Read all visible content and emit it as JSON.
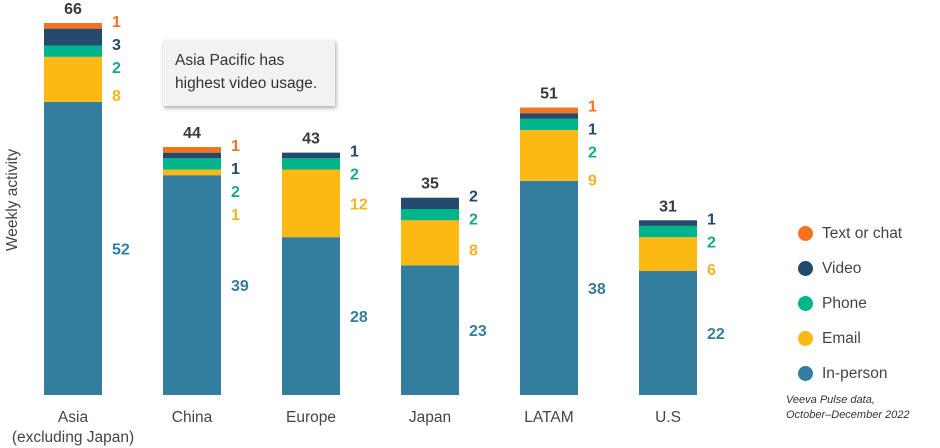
{
  "chart_data": {
    "type": "bar",
    "stacked": true,
    "title": "",
    "xlabel": "",
    "ylabel": "Weekly activity",
    "ylim": [
      0,
      66
    ],
    "grid": false,
    "categories": [
      "Asia\n(excluding Japan)",
      "China",
      "Europe",
      "Japan",
      "LATAM",
      "U.S"
    ],
    "category_lines": [
      [
        "Asia",
        "(excluding Japan)"
      ],
      [
        "China"
      ],
      [
        "Europe"
      ],
      [
        "Japan"
      ],
      [
        "LATAM"
      ],
      [
        "U.S"
      ]
    ],
    "totals": [
      66,
      44,
      43,
      35,
      51,
      31
    ],
    "series": [
      {
        "name": "In-person",
        "color": "#337e9e",
        "label_color": "#337e9e",
        "values": [
          52,
          39,
          28,
          23,
          38,
          22
        ]
      },
      {
        "name": "Email",
        "color": "#fcb914",
        "label_color": "#f6b51e",
        "values": [
          8,
          1,
          12,
          8,
          9,
          6
        ]
      },
      {
        "name": "Phone",
        "color": "#00b48c",
        "label_color": "#17a88a",
        "values": [
          2,
          2,
          2,
          2,
          2,
          2
        ]
      },
      {
        "name": "Video",
        "color": "#244a6e",
        "label_color": "#244a6e",
        "values": [
          3,
          1,
          1,
          2,
          1,
          1
        ]
      },
      {
        "name": "Text or chat",
        "color": "#f5721f",
        "label_color": "#f5721f",
        "values": [
          1,
          1,
          0,
          0,
          1,
          0
        ]
      }
    ],
    "legend": {
      "position": "right",
      "order": [
        "Text or chat",
        "Video",
        "Phone",
        "Email",
        "In-person"
      ]
    },
    "annotations": [
      {
        "text_lines": [
          "Asia Pacific has",
          "highest video usage."
        ],
        "type": "callout-box"
      }
    ]
  },
  "callout": {
    "line1": "Asia Pacific has",
    "line2": "highest video usage."
  },
  "legend": {
    "items": [
      {
        "label": "Text or chat",
        "color": "#f5721f"
      },
      {
        "label": "Video",
        "color": "#244a6e"
      },
      {
        "label": "Phone",
        "color": "#00b48c"
      },
      {
        "label": "Email",
        "color": "#fcb914"
      },
      {
        "label": "In-person",
        "color": "#337e9e"
      }
    ]
  },
  "ylabel": "Weekly activity",
  "source": {
    "line1": "Veeva Pulse data,",
    "line2": "October–December 2022"
  }
}
